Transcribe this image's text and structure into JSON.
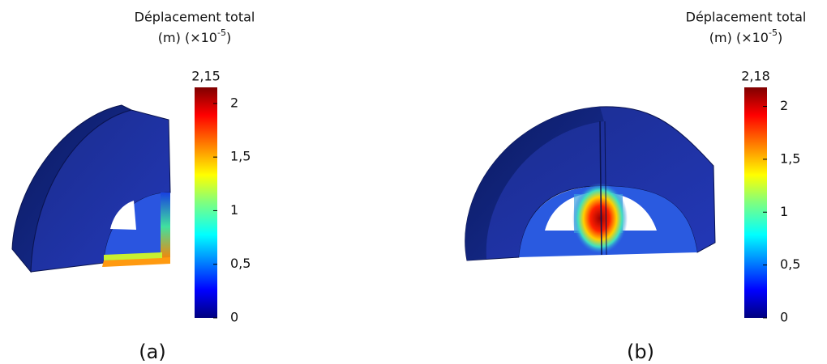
{
  "panels": [
    {
      "title": "Déplacement total",
      "unit": {
        "prefix": "(m) (×10",
        "exponent": "-5",
        "suffix": ")"
      },
      "colorbar": {
        "max": {
          "value": 2.15,
          "label": "2,15"
        },
        "ticks": [
          {
            "value": 0,
            "label": "0"
          },
          {
            "value": 0.5,
            "label": "0,5"
          },
          {
            "value": 1,
            "label": "1"
          },
          {
            "value": 1.5,
            "label": "1,5"
          },
          {
            "value": 2,
            "label": "2"
          }
        ]
      },
      "caption": "(a)"
    },
    {
      "title": "Déplacement total",
      "unit": {
        "prefix": "(m) (×10",
        "exponent": "-5",
        "suffix": ")"
      },
      "colorbar": {
        "max": {
          "value": 2.18,
          "label": "2,18"
        },
        "ticks": [
          {
            "value": 0,
            "label": "0"
          },
          {
            "value": 0.5,
            "label": "0,5"
          },
          {
            "value": 1,
            "label": "1"
          },
          {
            "value": 1.5,
            "label": "1,5"
          },
          {
            "value": 2,
            "label": "2"
          }
        ]
      },
      "caption": "(b)"
    }
  ]
}
